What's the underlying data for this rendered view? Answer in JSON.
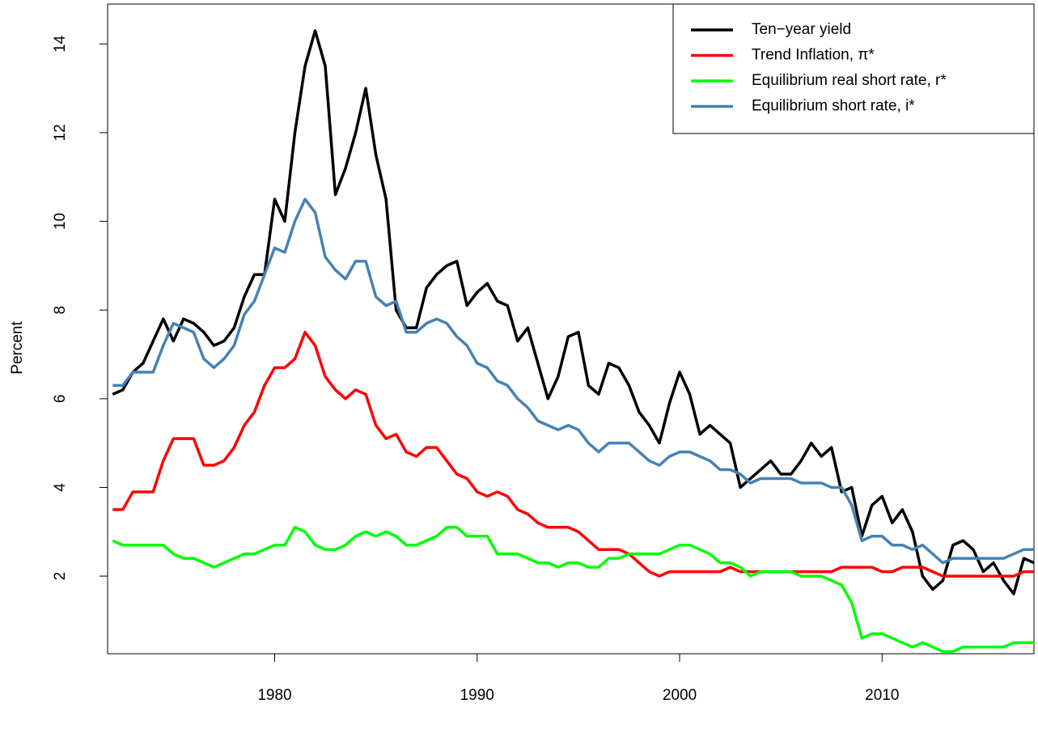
{
  "chart_data": {
    "type": "line",
    "y_label": "Percent",
    "xlim": [
      1971.75,
      2017.5
    ],
    "ylim": [
      0.25,
      14.9
    ],
    "xticks": [
      1980,
      1990,
      2000,
      2010
    ],
    "yticks": [
      2,
      4,
      6,
      8,
      10,
      12,
      14
    ],
    "legend": "top-right",
    "x": [
      1972,
      1972.5,
      1973,
      1973.5,
      1974,
      1974.5,
      1975,
      1975.5,
      1976,
      1976.5,
      1977,
      1977.5,
      1978,
      1978.5,
      1979,
      1979.5,
      1980,
      1980.5,
      1981,
      1981.5,
      1982,
      1982.5,
      1983,
      1983.5,
      1984,
      1984.5,
      1985,
      1985.5,
      1986,
      1986.5,
      1987,
      1987.5,
      1988,
      1988.5,
      1989,
      1989.5,
      1990,
      1990.5,
      1991,
      1991.5,
      1992,
      1992.5,
      1993,
      1993.5,
      1994,
      1994.5,
      1995,
      1995.5,
      1996,
      1996.5,
      1997,
      1997.5,
      1998,
      1998.5,
      1999,
      1999.5,
      2000,
      2000.5,
      2001,
      2001.5,
      2002,
      2002.5,
      2003,
      2003.5,
      2004,
      2004.5,
      2005,
      2005.5,
      2006,
      2006.5,
      2007,
      2007.5,
      2008,
      2008.5,
      2009,
      2009.5,
      2010,
      2010.5,
      2011,
      2011.5,
      2012,
      2012.5,
      2013,
      2013.5,
      2014,
      2014.5,
      2015,
      2015.5,
      2016,
      2016.5,
      2017,
      2017.5
    ],
    "series": [
      {
        "name": "Ten−year yield",
        "color": "#000000",
        "values": [
          6.1,
          6.2,
          6.6,
          6.8,
          7.3,
          7.8,
          7.3,
          7.8,
          7.7,
          7.5,
          7.2,
          7.3,
          7.6,
          8.3,
          8.8,
          8.8,
          10.5,
          10.0,
          12.0,
          13.5,
          14.3,
          13.5,
          10.6,
          11.2,
          12.0,
          13.0,
          11.5,
          10.5,
          8.0,
          7.6,
          7.6,
          8.5,
          8.8,
          9.0,
          9.1,
          8.1,
          8.4,
          8.6,
          8.2,
          8.1,
          7.3,
          7.6,
          6.8,
          6.0,
          6.5,
          7.4,
          7.5,
          6.3,
          6.1,
          6.8,
          6.7,
          6.3,
          5.7,
          5.4,
          5.0,
          5.9,
          6.6,
          6.1,
          5.2,
          5.4,
          5.2,
          5.0,
          4.0,
          4.2,
          4.4,
          4.6,
          4.3,
          4.3,
          4.6,
          5.0,
          4.7,
          4.9,
          3.9,
          4.0,
          2.9,
          3.6,
          3.8,
          3.2,
          3.5,
          3.0,
          2.0,
          1.7,
          1.9,
          2.7,
          2.8,
          2.6,
          2.1,
          2.3,
          1.9,
          1.6,
          2.4,
          2.3
        ]
      },
      {
        "name": "Trend Inflation, π*",
        "color": "#ff0000",
        "values": [
          3.5,
          3.5,
          3.9,
          3.9,
          3.9,
          4.6,
          5.1,
          5.1,
          5.1,
          4.5,
          4.5,
          4.6,
          4.9,
          5.4,
          5.7,
          6.3,
          6.7,
          6.7,
          6.9,
          7.5,
          7.2,
          6.5,
          6.2,
          6.0,
          6.2,
          6.1,
          5.4,
          5.1,
          5.2,
          4.8,
          4.7,
          4.9,
          4.9,
          4.6,
          4.3,
          4.2,
          3.9,
          3.8,
          3.9,
          3.8,
          3.5,
          3.4,
          3.2,
          3.1,
          3.1,
          3.1,
          3.0,
          2.8,
          2.6,
          2.6,
          2.6,
          2.5,
          2.3,
          2.1,
          2.0,
          2.1,
          2.1,
          2.1,
          2.1,
          2.1,
          2.1,
          2.2,
          2.1,
          2.1,
          2.1,
          2.1,
          2.1,
          2.1,
          2.1,
          2.1,
          2.1,
          2.1,
          2.2,
          2.2,
          2.2,
          2.2,
          2.1,
          2.1,
          2.2,
          2.2,
          2.2,
          2.1,
          2.0,
          2.0,
          2.0,
          2.0,
          2.0,
          2.0,
          2.0,
          2.0,
          2.1,
          2.1
        ]
      },
      {
        "name": "Equilibrium real short rate, r*",
        "color": "#00ff00",
        "values": [
          2.8,
          2.7,
          2.7,
          2.7,
          2.7,
          2.7,
          2.5,
          2.4,
          2.4,
          2.3,
          2.2,
          2.3,
          2.4,
          2.5,
          2.5,
          2.6,
          2.7,
          2.7,
          3.1,
          3.0,
          2.7,
          2.6,
          2.6,
          2.7,
          2.9,
          3.0,
          2.9,
          3.0,
          2.9,
          2.7,
          2.7,
          2.8,
          2.9,
          3.1,
          3.1,
          2.9,
          2.9,
          2.9,
          2.5,
          2.5,
          2.5,
          2.4,
          2.3,
          2.3,
          2.2,
          2.3,
          2.3,
          2.2,
          2.2,
          2.4,
          2.4,
          2.5,
          2.5,
          2.5,
          2.5,
          2.6,
          2.7,
          2.7,
          2.6,
          2.5,
          2.3,
          2.3,
          2.2,
          2.0,
          2.1,
          2.1,
          2.1,
          2.1,
          2.0,
          2.0,
          2.0,
          1.9,
          1.8,
          1.4,
          0.6,
          0.7,
          0.7,
          0.6,
          0.5,
          0.4,
          0.5,
          0.4,
          0.3,
          0.3,
          0.4,
          0.4,
          0.4,
          0.4,
          0.4,
          0.5,
          0.5,
          0.5
        ]
      },
      {
        "name": "Equilibrium short rate, i*",
        "color": "#4682b4",
        "values": [
          6.3,
          6.3,
          6.6,
          6.6,
          6.6,
          7.2,
          7.7,
          7.6,
          7.5,
          6.9,
          6.7,
          6.9,
          7.2,
          7.9,
          8.2,
          8.8,
          9.4,
          9.3,
          10.0,
          10.5,
          10.2,
          9.2,
          8.9,
          8.7,
          9.1,
          9.1,
          8.3,
          8.1,
          8.2,
          7.5,
          7.5,
          7.7,
          7.8,
          7.7,
          7.4,
          7.2,
          6.8,
          6.7,
          6.4,
          6.3,
          6.0,
          5.8,
          5.5,
          5.4,
          5.3,
          5.4,
          5.3,
          5.0,
          4.8,
          5.0,
          5.0,
          5.0,
          4.8,
          4.6,
          4.5,
          4.7,
          4.8,
          4.8,
          4.7,
          4.6,
          4.4,
          4.4,
          4.3,
          4.1,
          4.2,
          4.2,
          4.2,
          4.2,
          4.1,
          4.1,
          4.1,
          4.0,
          4.0,
          3.6,
          2.8,
          2.9,
          2.9,
          2.7,
          2.7,
          2.6,
          2.7,
          2.5,
          2.3,
          2.4,
          2.4,
          2.4,
          2.4,
          2.4,
          2.4,
          2.5,
          2.6,
          2.6
        ]
      }
    ]
  }
}
